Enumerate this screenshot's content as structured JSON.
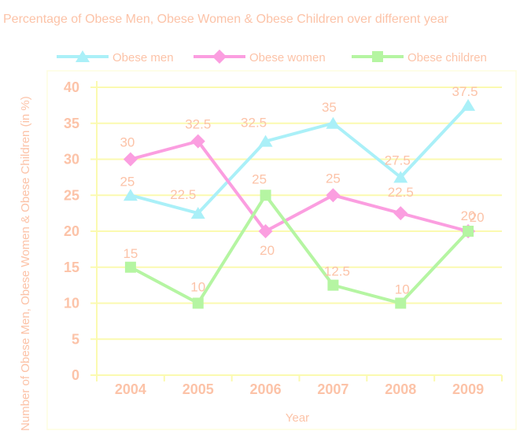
{
  "chart_data": {
    "type": "line",
    "title": "Percentage of Obese Men, Obese Women & Obese Children over different year",
    "xlabel": "Year",
    "ylabel": "Number of Obese Men, Obese Women & Obese Children (in %)",
    "categories": [
      "2004",
      "2005",
      "2006",
      "2007",
      "2008",
      "2009"
    ],
    "ylim": [
      0,
      40
    ],
    "yticks": [
      "0",
      "5",
      "10",
      "15",
      "20",
      "25",
      "30",
      "35",
      "40"
    ],
    "grid": true,
    "legend_position": "top",
    "series": [
      {
        "name": "Obese men",
        "values": [
          25,
          22.5,
          32.5,
          35,
          27.5,
          37.5
        ],
        "labels": [
          "25",
          "22.5",
          "32.5",
          "35",
          "27.5",
          "37.5"
        ],
        "color": "#aaf0f8",
        "marker": "triangle"
      },
      {
        "name": "Obese women",
        "values": [
          30,
          32.5,
          20,
          25,
          22.5,
          20
        ],
        "labels": [
          "30",
          "32.5",
          "20",
          "25",
          "22.5",
          "20"
        ],
        "color": "#fb9ee0",
        "marker": "diamond"
      },
      {
        "name": "Obese children",
        "values": [
          15,
          10,
          25,
          12.5,
          10,
          20
        ],
        "labels": [
          "15",
          "10",
          "25",
          "12.5",
          "10",
          "20"
        ],
        "color": "#b5f5a2",
        "marker": "square"
      }
    ],
    "colors": {
      "text": "#fcc3a8",
      "axis": "#fbfab0",
      "grid": "#fbfab0",
      "border": "#fdfde0"
    }
  }
}
